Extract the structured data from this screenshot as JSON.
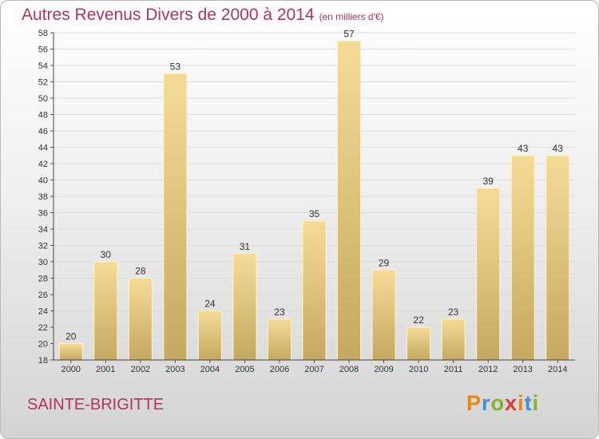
{
  "title": "Autres Revenus Divers de 2000 à 2014",
  "subtitle": "(en milliers d'€)",
  "commune": "SAINTE-BRIGITTE",
  "logo": {
    "letters": [
      "P",
      "r",
      "o",
      "x",
      "i",
      "t",
      "i"
    ],
    "colors": [
      "#e9870f",
      "#3f8fd6",
      "#7db52e",
      "#e03a2c",
      "#e9870f",
      "#3f8fd6",
      "#7db52e"
    ]
  },
  "colors": {
    "accent": "#b0345f",
    "bar_light": "#f5dc96",
    "bar_dark": "#c5a862",
    "bar_stroke": "#fff2c4"
  },
  "chart_data": {
    "type": "bar",
    "title": "Autres Revenus Divers de 2000 à 2014",
    "subtitle": "(en milliers d'€)",
    "categories": [
      "2000",
      "2001",
      "2002",
      "2003",
      "2004",
      "2005",
      "2006",
      "2007",
      "2008",
      "2009",
      "2010",
      "2011",
      "2012",
      "2013",
      "2014"
    ],
    "values": [
      20,
      30,
      28,
      53,
      24,
      31,
      23,
      35,
      57,
      29,
      22,
      23,
      39,
      43,
      43
    ],
    "ylim": [
      18,
      58
    ],
    "yticks": [
      18,
      20,
      22,
      24,
      26,
      28,
      30,
      32,
      34,
      36,
      38,
      40,
      42,
      44,
      46,
      48,
      50,
      52,
      54,
      56,
      58
    ],
    "grid": true,
    "data_labels": true
  }
}
